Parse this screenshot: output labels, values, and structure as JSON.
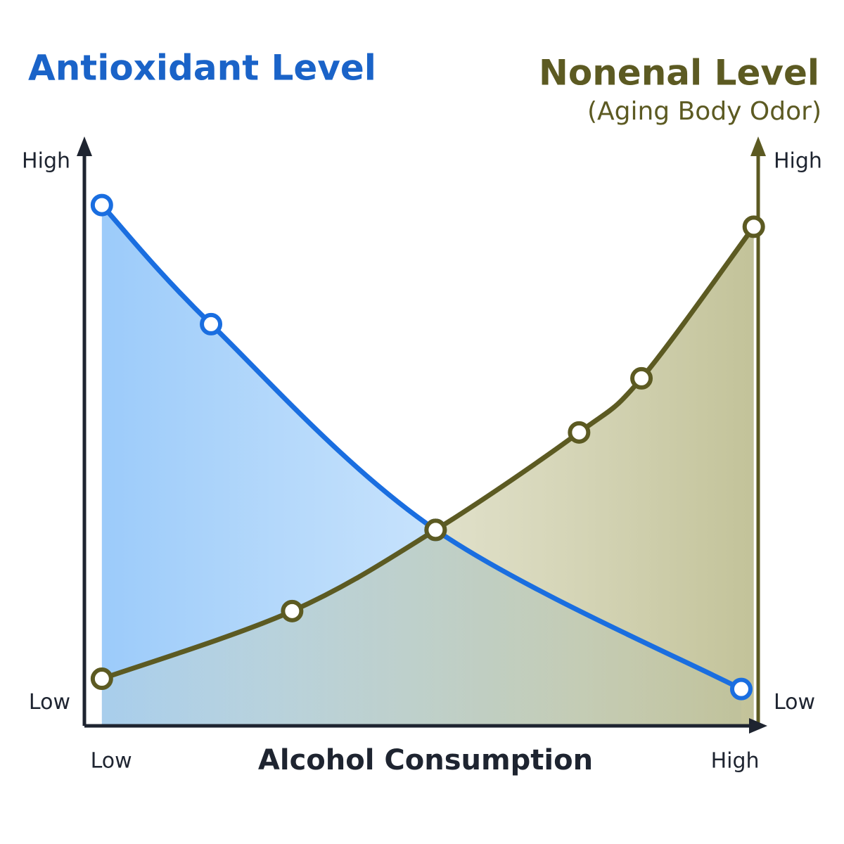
{
  "chart_data": {
    "type": "line",
    "title": "Antioxidant Level",
    "y2label": "Nonenal Level",
    "y2sublabel": "(Aging Body Odor)",
    "xlabel": "Alcohol Consumption",
    "xlim": [
      -4.3,
      104.5
    ],
    "xticks": [
      {
        "value": 0,
        "label": "Low"
      },
      {
        "value": 100,
        "label": "High"
      }
    ],
    "ylim": [
      -4.2,
      103.9
    ],
    "yticks": [
      {
        "value": 0,
        "label": "Low"
      },
      {
        "value": 100,
        "label": "High"
      }
    ],
    "y2lim": [
      -4.2,
      103.9
    ],
    "y2ticks": [
      {
        "value": 0,
        "label": "Low"
      },
      {
        "value": 100,
        "label": "High"
      }
    ],
    "series": [
      {
        "color": "#1a6ee0",
        "x": [
          -1.5,
          16,
          52,
          101
        ],
        "values": [
          92,
          70,
          32,
          2.6
        ]
      },
      {
        "color": "#5c5a22",
        "axis": "y2",
        "x": [
          -1.5,
          29,
          52,
          75,
          85,
          103
        ],
        "values": [
          4.5,
          17,
          32,
          50,
          60,
          88
        ]
      }
    ]
  }
}
